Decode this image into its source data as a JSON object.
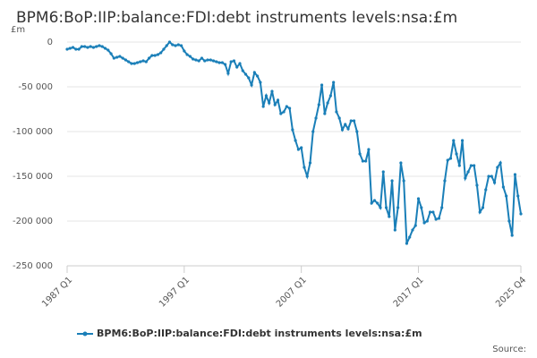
{
  "chart_data": {
    "type": "line",
    "title": "BPM6:BoP:IIP:balance:FDI:debt instruments levels:nsa:£m",
    "y_unit_label": "£m",
    "source_label": "Source:",
    "legend_position": "bottom",
    "grid": true,
    "categories": [
      "1987 Q1",
      null,
      null,
      null,
      null,
      null,
      null,
      null,
      null,
      null,
      null,
      null,
      null,
      null,
      null,
      null,
      null,
      null,
      null,
      null,
      null,
      null,
      null,
      null,
      null,
      null,
      null,
      null,
      null,
      null,
      null,
      null,
      null,
      null,
      null,
      null,
      null,
      null,
      null,
      null,
      "1997 Q1",
      null,
      null,
      null,
      null,
      null,
      null,
      null,
      null,
      null,
      null,
      null,
      null,
      null,
      null,
      null,
      null,
      null,
      null,
      null,
      null,
      null,
      null,
      null,
      null,
      null,
      null,
      null,
      null,
      null,
      null,
      null,
      null,
      null,
      null,
      null,
      null,
      null,
      null,
      null,
      "2007 Q1",
      null,
      null,
      null,
      null,
      null,
      null,
      null,
      null,
      null,
      null,
      null,
      null,
      null,
      null,
      null,
      null,
      null,
      null,
      null,
      null,
      null,
      null,
      null,
      null,
      null,
      null,
      null,
      null,
      null,
      null,
      null,
      null,
      null,
      null,
      null,
      null,
      null,
      null,
      null,
      "2017 Q1",
      null,
      null,
      null,
      null,
      null,
      null,
      null,
      null,
      null,
      null,
      null,
      null,
      null,
      null,
      null,
      null,
      null,
      null,
      null,
      null,
      null,
      null,
      null,
      null,
      null,
      null,
      null,
      null,
      null,
      null,
      null,
      null,
      null,
      null,
      "2025 Q4"
    ],
    "series": [
      {
        "name": "BPM6:BoP:IIP:balance:FDI:debt instruments levels:nsa:£m",
        "color": "#1a7fb8",
        "values": [
          -8000,
          -7000,
          -6000,
          -8000,
          -8000,
          -5000,
          -5000,
          -6000,
          -5000,
          -6000,
          -5000,
          -4000,
          -5000,
          -7000,
          -9000,
          -13000,
          -18000,
          -17000,
          -16000,
          -18000,
          -20000,
          -22000,
          -24000,
          -24000,
          -23000,
          -22000,
          -21000,
          -22000,
          -18000,
          -15000,
          -15000,
          -14000,
          -12000,
          -8000,
          -4000,
          0,
          -3000,
          -4000,
          -3000,
          -4000,
          -10000,
          -14000,
          -16000,
          -19000,
          -20000,
          -21000,
          -18000,
          -21000,
          -20000,
          -20000,
          -21000,
          -22000,
          -23000,
          -23000,
          -25000,
          -35000,
          -22000,
          -21000,
          -28000,
          -24000,
          -32000,
          -36000,
          -40000,
          -48000,
          -34000,
          -38000,
          -45000,
          -72000,
          -60000,
          -68000,
          -55000,
          -70000,
          -65000,
          -80000,
          -78000,
          -72000,
          -74000,
          -98000,
          -110000,
          -120000,
          -118000,
          -140000,
          -150000,
          -135000,
          -100000,
          -85000,
          -70000,
          -48000,
          -80000,
          -68000,
          -60000,
          -45000,
          -78000,
          -85000,
          -98000,
          -92000,
          -97000,
          -88000,
          -88000,
          -100000,
          -125000,
          -133000,
          -133000,
          -120000,
          -180000,
          -177000,
          -180000,
          -185000,
          -145000,
          -185000,
          -195000,
          -155000,
          -210000,
          -185000,
          -135000,
          -155000,
          -225000,
          -218000,
          -210000,
          -205000,
          -175000,
          -185000,
          -202000,
          -200000,
          -190000,
          -190000,
          -198000,
          -197000,
          -185000,
          -155000,
          -132000,
          -130000,
          -110000,
          -125000,
          -138000,
          -110000,
          -152000,
          -145000,
          -138000,
          -138000,
          -160000,
          -190000,
          -185000,
          -165000,
          -150000,
          -150000,
          -157000,
          -140000,
          -135000,
          -162000,
          -172000,
          -200000,
          -216000,
          -148000,
          -172000,
          -192000
        ]
      }
    ],
    "ylim": [
      -250000,
      0
    ],
    "yticks": [
      {
        "value": -250000,
        "label": "-250 000"
      },
      {
        "value": -200000,
        "label": "-200 000"
      },
      {
        "value": -150000,
        "label": "-150 000"
      },
      {
        "value": -100000,
        "label": "-100 000"
      },
      {
        "value": -50000,
        "label": "-50 000"
      },
      0
    ]
  }
}
